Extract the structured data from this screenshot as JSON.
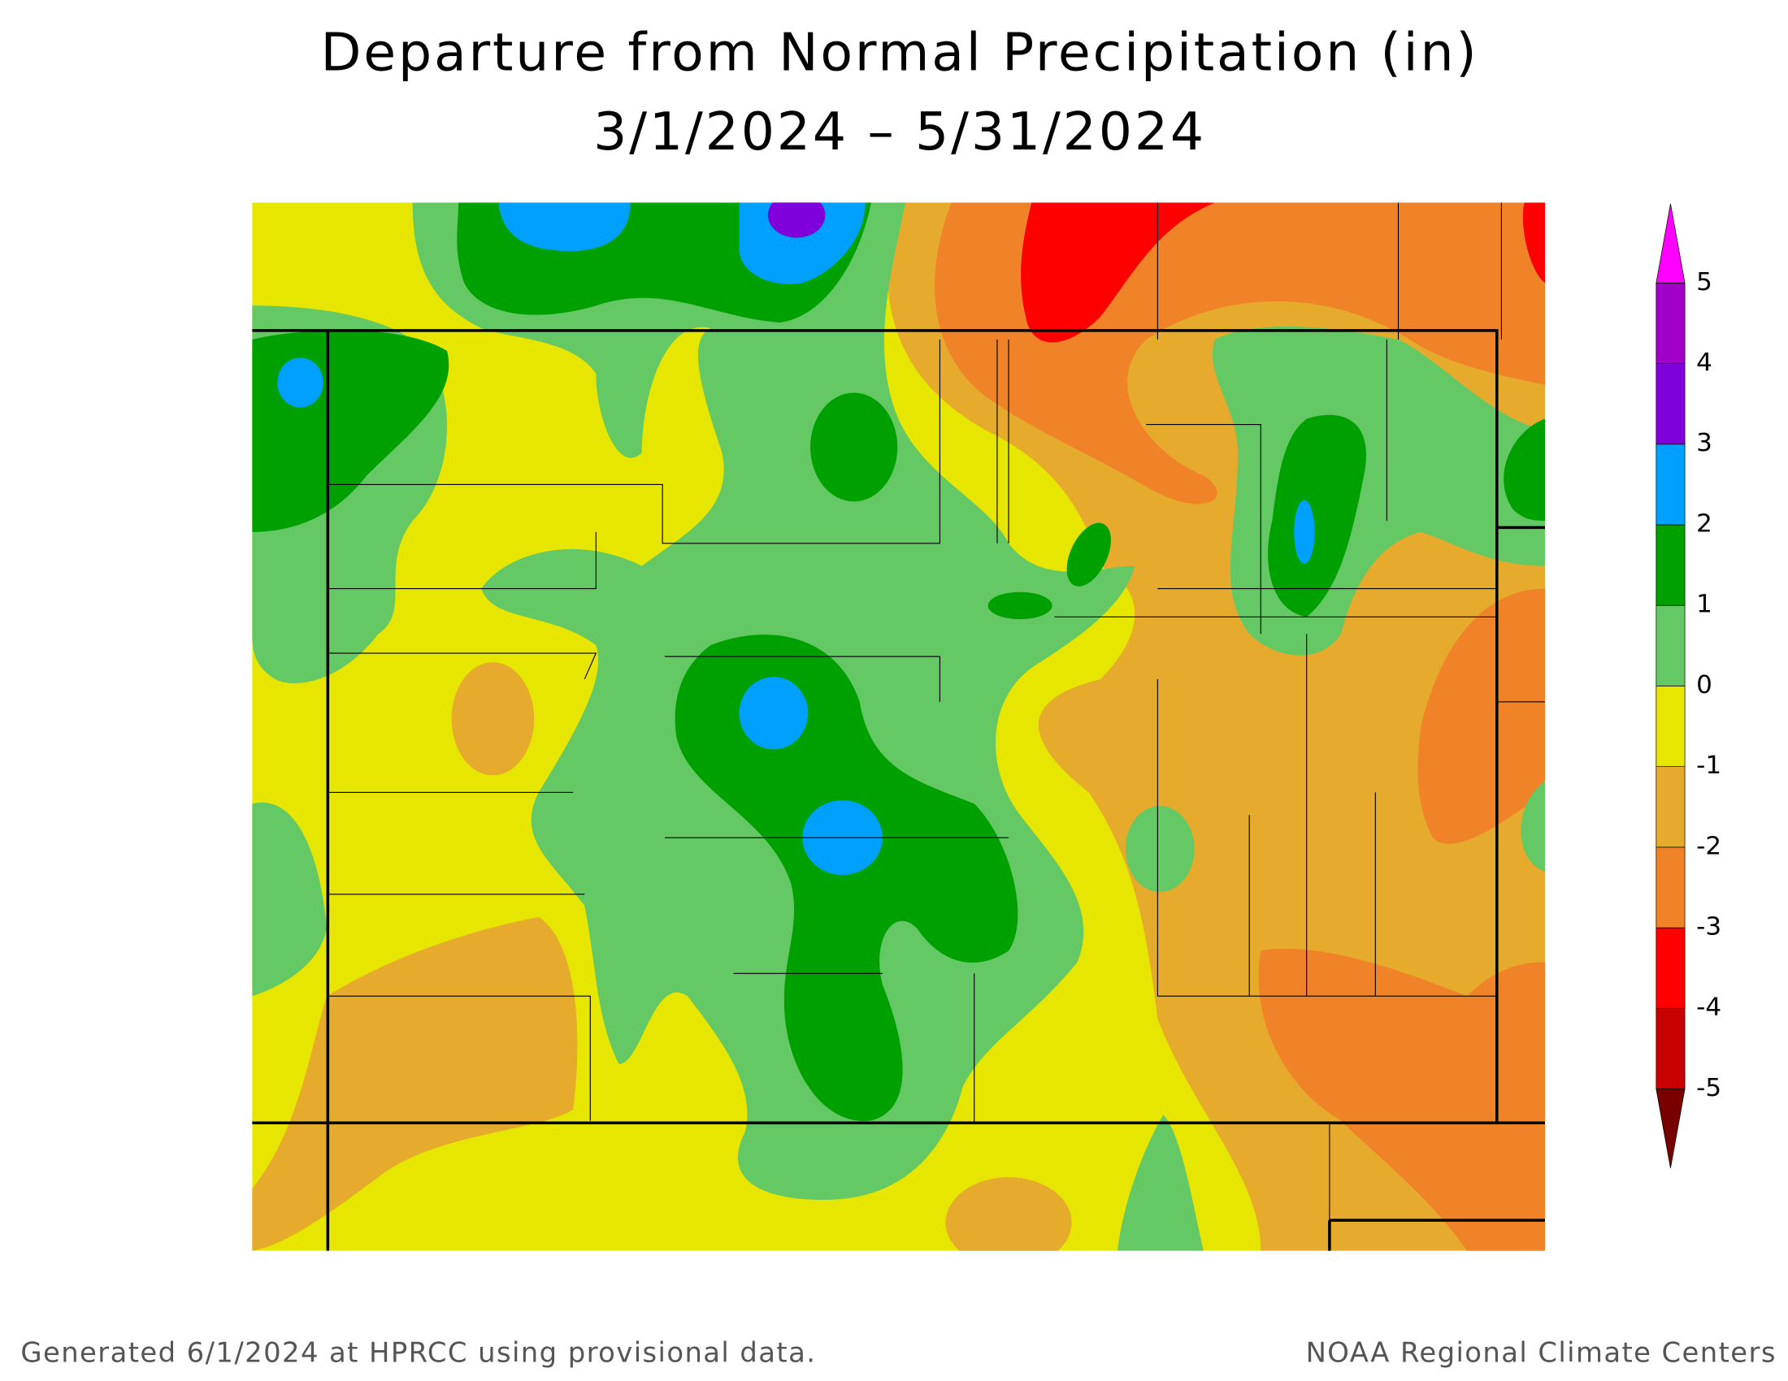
{
  "title": [
    "Departure from Normal Precipitation (in)",
    "3/1/2024 – 5/31/2024"
  ],
  "footer": {
    "left": "Generated 6/1/2024 at HPRCC using provisional data.",
    "right": "NOAA Regional Climate Centers"
  },
  "legend": {
    "ticks": [
      -5,
      -4,
      -3,
      -2,
      -1,
      0,
      1,
      2,
      3,
      4,
      5
    ],
    "colors": [
      "#780000",
      "#c80000",
      "#ff0000",
      "#f08228",
      "#e6aa2d",
      "#e6e600",
      "#64c864",
      "#00a000",
      "#00a0ff",
      "#8000dc",
      "#a000c8",
      "#ff00ff"
    ]
  }
}
